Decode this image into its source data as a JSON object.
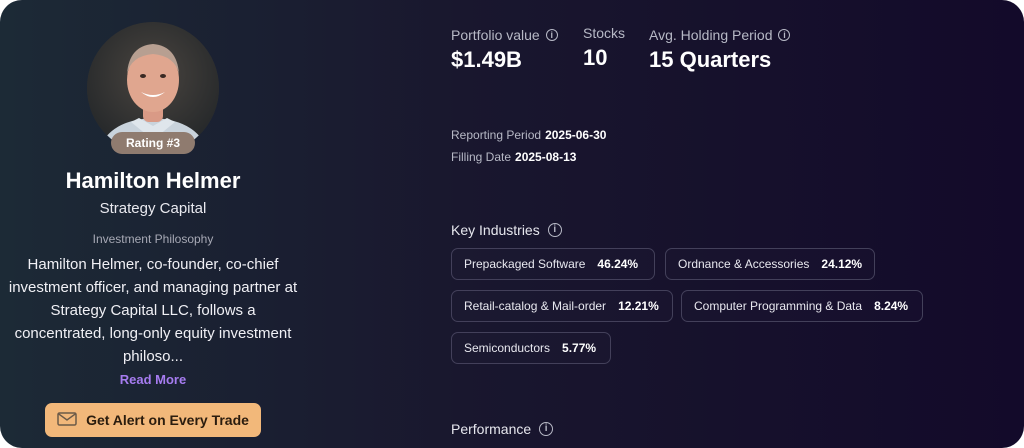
{
  "profile": {
    "rating": "Rating #3",
    "name": "Hamilton Helmer",
    "firm": "Strategy Capital",
    "philosophy_label": "Investment Philosophy",
    "philosophy_text": "Hamilton Helmer, co-founder, co-chief investment officer, and managing partner at Strategy Capital LLC, follows a concentrated, long-only equity investment philoso...",
    "read_more": "Read More",
    "alert_button": "Get Alert on Every Trade"
  },
  "stats": {
    "portfolio_label": "Portfolio value",
    "portfolio_value": "$1.49B",
    "stocks_label": "Stocks",
    "stocks_value": "10",
    "holding_label": "Avg. Holding Period",
    "holding_value": "15 Quarters"
  },
  "meta": {
    "reporting_label": "Reporting Period",
    "reporting_value": "2025-06-30",
    "filing_label": "Filling Date",
    "filing_value": "2025-08-13"
  },
  "industries": {
    "title": "Key Industries",
    "items": [
      {
        "name": "Prepackaged Software",
        "pct": "46.24%"
      },
      {
        "name": "Ordnance & Accessories",
        "pct": "24.12%"
      },
      {
        "name": "Retail-catalog & Mail-order",
        "pct": "12.21%"
      },
      {
        "name": "Computer Programming & Data",
        "pct": "8.24%"
      },
      {
        "name": "Semiconductors",
        "pct": "5.77%"
      }
    ]
  },
  "performance": {
    "title": "Performance"
  },
  "icons": {
    "info": "info-icon",
    "mail": "mail-icon"
  },
  "colors": {
    "accent": "#a67cf0",
    "button": "#f2b87a",
    "rating_badge": "#8f7b6f"
  }
}
